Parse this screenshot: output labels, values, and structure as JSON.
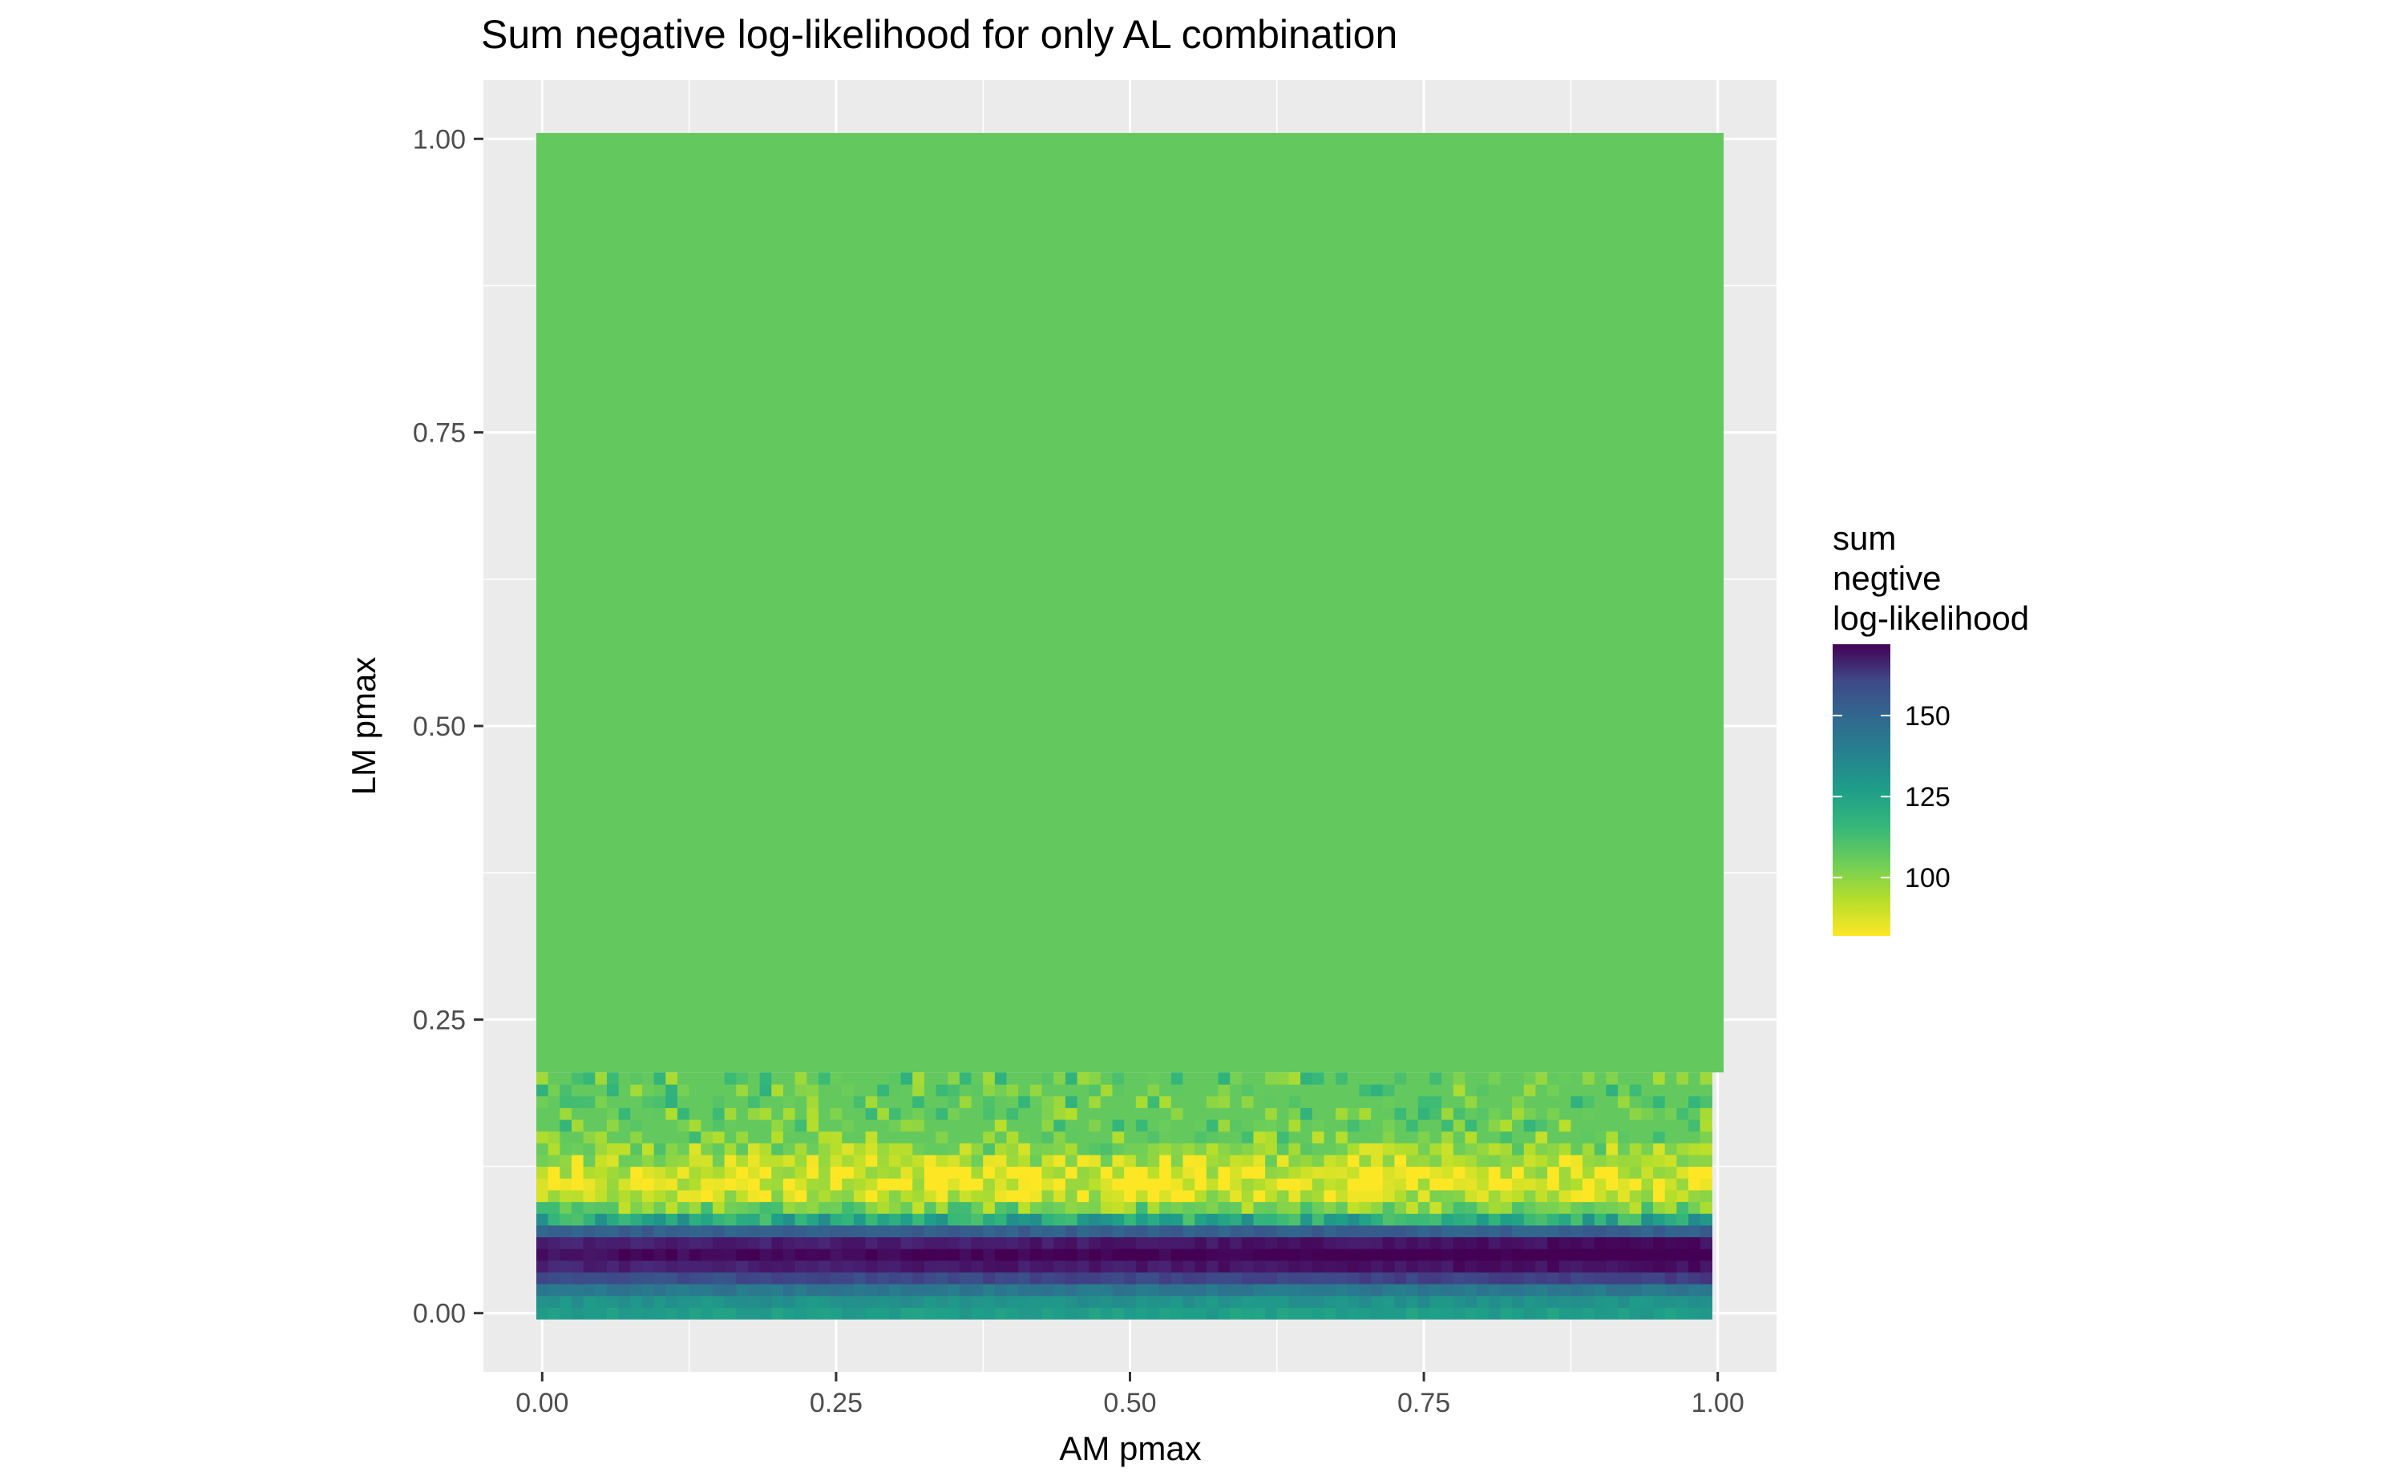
{
  "chart_data": {
    "type": "heatmap",
    "title": "Sum negative log-likelihood for only AL combination",
    "xlabel": "AM pmax",
    "ylabel": "LM pmax",
    "xlim": [
      -0.05,
      1.05
    ],
    "ylim": [
      -0.05,
      1.05
    ],
    "x_ticks": [
      0,
      0.25,
      0.5,
      0.75,
      1
    ],
    "y_ticks": [
      0,
      0.25,
      0.5,
      0.75,
      1
    ],
    "x_tick_labels": [
      "0.00",
      "0.25",
      "0.50",
      "0.75",
      "1.00"
    ],
    "y_tick_labels": [
      "0.00",
      "0.25",
      "0.50",
      "0.75",
      "1.00"
    ],
    "grid": true,
    "panel_background": "#ebebeb",
    "grid_color": "#ffffff",
    "legend": {
      "title_lines": [
        "sum",
        "negtive",
        "log-likelihood"
      ],
      "placement": "right",
      "ticks": [
        100,
        125,
        150
      ],
      "tick_labels": [
        "100",
        "125",
        "150"
      ],
      "min": 82,
      "max": 172,
      "colormap": "viridis-reversed"
    },
    "grid_resolution": {
      "nx": 100,
      "ny": 100,
      "x_step": 0.01,
      "y_step": 0.01
    },
    "plateau_value": 104,
    "profile_by_lm_pmax": [
      {
        "lm_pmax": 0.0,
        "value": 122
      },
      {
        "lm_pmax": 0.01,
        "value": 126
      },
      {
        "lm_pmax": 0.02,
        "value": 136
      },
      {
        "lm_pmax": 0.03,
        "value": 150
      },
      {
        "lm_pmax": 0.04,
        "value": 163
      },
      {
        "lm_pmax": 0.05,
        "value": 169
      },
      {
        "lm_pmax": 0.06,
        "value": 163
      },
      {
        "lm_pmax": 0.07,
        "value": 145
      },
      {
        "lm_pmax": 0.08,
        "value": 118
      },
      {
        "lm_pmax": 0.09,
        "value": 100
      },
      {
        "lm_pmax": 0.1,
        "value": 90
      },
      {
        "lm_pmax": 0.11,
        "value": 86
      },
      {
        "lm_pmax": 0.12,
        "value": 88
      },
      {
        "lm_pmax": 0.13,
        "value": 92
      },
      {
        "lm_pmax": 0.14,
        "value": 97
      },
      {
        "lm_pmax": 0.15,
        "value": 100
      },
      {
        "lm_pmax": 0.16,
        "value": 102
      },
      {
        "lm_pmax": 0.17,
        "value": 103
      },
      {
        "lm_pmax": 0.18,
        "value": 104
      },
      {
        "lm_pmax": 0.19,
        "value": 104
      },
      {
        "lm_pmax": 0.2,
        "value": 104
      }
    ]
  }
}
